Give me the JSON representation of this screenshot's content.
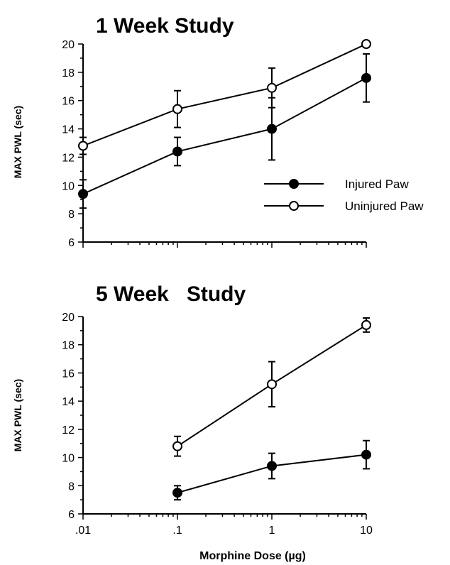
{
  "chart_data": [
    {
      "type": "line",
      "title": "1 Week Study",
      "ylabel": "MAX  PWL  (sec)",
      "xlabel": "",
      "x_scale": "log",
      "xlim": [
        0.01,
        10
      ],
      "ylim": [
        6,
        20
      ],
      "yticks": [
        "6",
        "8",
        "10",
        "12",
        "14",
        "16",
        "18",
        "20"
      ],
      "xticks": [],
      "x": [
        0.01,
        0.1,
        1,
        10
      ],
      "legend": {
        "placement": "right"
      },
      "series": [
        {
          "name": "Injured Paw",
          "marker": "filled-circle",
          "values": [
            9.4,
            12.4,
            14.0,
            17.6
          ],
          "err": [
            1.0,
            1.0,
            2.2,
            1.7
          ]
        },
        {
          "name": "Uninjured Paw",
          "marker": "open-circle",
          "values": [
            12.8,
            15.4,
            16.9,
            20.0
          ],
          "err": [
            0.6,
            1.3,
            1.4,
            0.0
          ]
        }
      ]
    },
    {
      "type": "line",
      "title": "5 Week   Study",
      "ylabel": "MAX  PWL  (sec)",
      "xlabel": "Morphine Dose  (µg)",
      "x_scale": "log",
      "xlim": [
        0.01,
        10
      ],
      "ylim": [
        6,
        20
      ],
      "yticks": [
        "6",
        "8",
        "10",
        "12",
        "14",
        "16",
        "18",
        "20"
      ],
      "xticks": [
        ".01",
        ".1",
        "1",
        "10"
      ],
      "x": [
        0.1,
        1,
        10
      ],
      "series": [
        {
          "name": "Injured Paw",
          "marker": "filled-circle",
          "values": [
            7.5,
            9.4,
            10.2
          ],
          "err": [
            0.5,
            0.9,
            1.0
          ]
        },
        {
          "name": "Uninjured Paw",
          "marker": "open-circle",
          "values": [
            10.8,
            15.2,
            19.4
          ],
          "err": [
            0.7,
            1.6,
            0.5
          ]
        }
      ]
    }
  ]
}
